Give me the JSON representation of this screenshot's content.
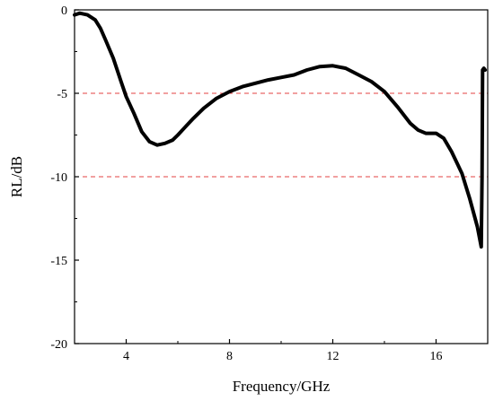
{
  "chart_data": {
    "type": "line",
    "title": "",
    "xlabel": "Frequency/GHz",
    "ylabel": "RL/dB",
    "xlim": [
      2,
      18
    ],
    "ylim": [
      -20,
      0
    ],
    "xticks": [
      4,
      8,
      12,
      16
    ],
    "xtick_labels": [
      "4",
      "8",
      "12",
      "16"
    ],
    "yticks": [
      0,
      -5,
      -10,
      -15,
      -20
    ],
    "ytick_labels": [
      "0",
      "-5",
      "-10",
      "-15",
      "-20"
    ],
    "grid": false,
    "legend": "none",
    "reference_lines": [
      {
        "y": -5,
        "color": "#e34040",
        "style": "dashed"
      },
      {
        "y": -10,
        "color": "#e34040",
        "style": "dashed"
      }
    ],
    "series": [
      {
        "color": "#000000",
        "x": [
          2.0,
          2.2,
          2.5,
          2.8,
          3.0,
          3.2,
          3.5,
          3.8,
          4.0,
          4.3,
          4.6,
          4.9,
          5.2,
          5.5,
          5.8,
          6.0,
          6.3,
          6.6,
          7.0,
          7.5,
          8.0,
          8.5,
          9.0,
          9.5,
          10.0,
          10.5,
          11.0,
          11.5,
          12.0,
          12.5,
          13.0,
          13.5,
          14.0,
          14.5,
          15.0,
          15.3,
          15.6,
          16.0,
          16.3,
          16.6,
          17.0,
          17.3,
          17.6,
          17.75,
          17.78,
          17.8,
          17.85,
          17.9
        ],
        "y": [
          -0.3,
          -0.2,
          -0.3,
          -0.6,
          -1.1,
          -1.8,
          -2.9,
          -4.3,
          -5.2,
          -6.2,
          -7.3,
          -7.9,
          -8.1,
          -8.0,
          -7.8,
          -7.5,
          -7.0,
          -6.5,
          -5.9,
          -5.3,
          -4.9,
          -4.6,
          -4.4,
          -4.2,
          -4.05,
          -3.9,
          -3.6,
          -3.4,
          -3.35,
          -3.5,
          -3.9,
          -4.3,
          -4.9,
          -5.8,
          -6.8,
          -7.2,
          -7.4,
          -7.4,
          -7.7,
          -8.5,
          -9.8,
          -11.3,
          -13.0,
          -14.2,
          -10.0,
          -3.6,
          -3.5,
          -3.6
        ]
      }
    ]
  }
}
